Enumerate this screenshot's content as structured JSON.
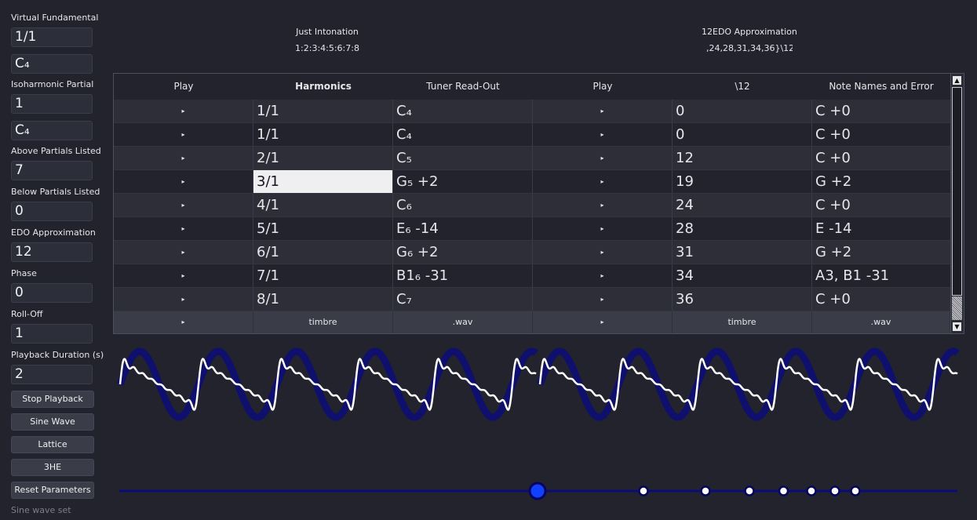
{
  "sidebar": {
    "virtual_fundamental": {
      "label": "Virtual Fundamental",
      "ratio": "1/1",
      "note": "C₄"
    },
    "isoharmonic_partial": {
      "label": "Isoharmonic Partial",
      "ratio": "1",
      "note": "C₄"
    },
    "above_partials": {
      "label": "Above Partials Listed",
      "value": "7"
    },
    "below_partials": {
      "label": "Below Partials Listed",
      "value": "0"
    },
    "edo_approx": {
      "label": "EDO Approximation",
      "value": "12"
    },
    "phase": {
      "label": "Phase",
      "value": "0"
    },
    "roll_off": {
      "label": "Roll-Off",
      "value": "1"
    },
    "playback_duration": {
      "label": "Playback Duration (s)",
      "value": "2"
    },
    "buttons": {
      "stop_playback": "Stop Playback",
      "sine_wave": "Sine Wave",
      "lattice": "Lattice",
      "three_he": "3HE",
      "reset_parameters": "Reset Parameters"
    },
    "status": "Sine wave set"
  },
  "header": {
    "ji_title": "Just Intonation",
    "ji_ratio": "1:2:3:4:5:6:7:8",
    "edo_title": "12EDO Approximation",
    "edo_set": ",24,28,31,34,36}\\12"
  },
  "table": {
    "columns": [
      "Play",
      "Harmonics",
      "Tuner Read-Out",
      "Play",
      "\\12",
      "Note Names and Error"
    ],
    "play_glyph": "▸",
    "rows": [
      {
        "harmonic": "1/1",
        "tuner": "C₄",
        "edo": "0",
        "note": "C  +0"
      },
      {
        "harmonic": "1/1",
        "tuner": "C₄",
        "edo": "0",
        "note": "C  +0"
      },
      {
        "harmonic": "2/1",
        "tuner": "C₅",
        "edo": "12",
        "note": "C  +0"
      },
      {
        "harmonic": "3/1",
        "tuner": "G₅ +2",
        "edo": "19",
        "note": "G  +2"
      },
      {
        "harmonic": "4/1",
        "tuner": "C₆",
        "edo": "24",
        "note": "C  +0"
      },
      {
        "harmonic": "5/1",
        "tuner": "E₆ -14",
        "edo": "28",
        "note": "E  -14"
      },
      {
        "harmonic": "6/1",
        "tuner": "G₆ +2",
        "edo": "31",
        "note": "G  +2"
      },
      {
        "harmonic": "7/1",
        "tuner": "B1₆ -31",
        "edo": "34",
        "note": "A3, B1  -31"
      },
      {
        "harmonic": "8/1",
        "tuner": "C₇",
        "edo": "36",
        "note": "C  +0"
      }
    ],
    "selected_row": 3,
    "footer": [
      "timbre",
      ".wav",
      "timbre",
      ".wav"
    ],
    "scroll_up": "▲",
    "scroll_down": "▼"
  },
  "colors": {
    "background": "#22232d",
    "sine_wave": "#0f0f6e",
    "timbre_wave": "#ffffff",
    "slider_track": "#0c0c78",
    "slider_knob": "#1240ff"
  },
  "slider": {
    "partials": [
      0,
      1,
      2,
      3,
      4,
      5,
      6,
      7
    ],
    "active_partial": 0
  }
}
